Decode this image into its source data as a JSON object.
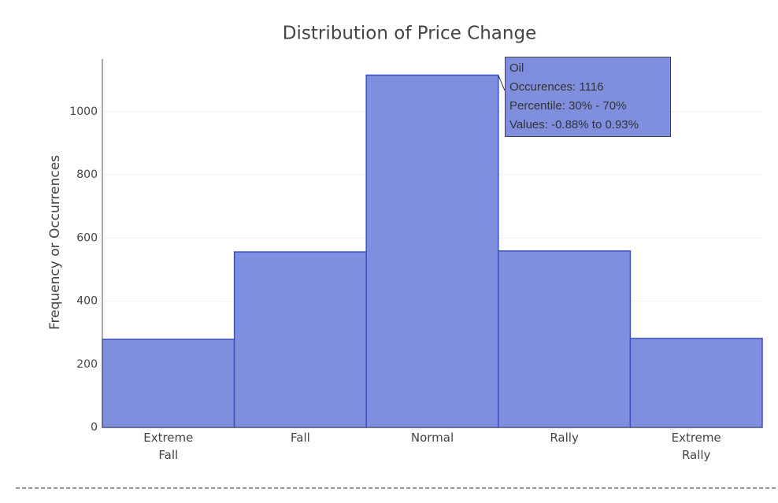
{
  "chart_data": {
    "type": "bar",
    "title": "Distribution of Price Change",
    "y_label": "Frequency or Occurrences",
    "categories": [
      "Extreme Fall",
      "Fall",
      "Normal",
      "Rally",
      "Extreme Rally"
    ],
    "values": [
      279,
      556,
      1116,
      559,
      282
    ],
    "color": "#7f8fdd",
    "edge_color": "#3c4fc2",
    "ylim": [
      0,
      1167
    ],
    "yticks": [
      0,
      200,
      400,
      600,
      800,
      1000
    ],
    "grid": true,
    "tooltip": {
      "title": "Oil",
      "lines": [
        "Occurences: 1116",
        "Percentile: 30% - 70%",
        "Values: -0.88% to 0.93%"
      ]
    }
  }
}
